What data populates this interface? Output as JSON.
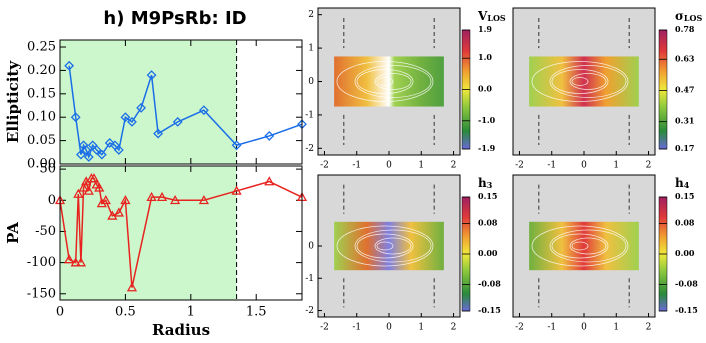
{
  "chart_data": [
    {
      "type": "line",
      "title": "h) M9PsRb: ID",
      "y_label": "Ellipticity",
      "marker": "diamond",
      "x": [
        0.07,
        0.12,
        0.16,
        0.18,
        0.2,
        0.22,
        0.25,
        0.28,
        0.32,
        0.38,
        0.42,
        0.45,
        0.5,
        0.55,
        0.62,
        0.7,
        0.75,
        0.9,
        1.1,
        1.35,
        1.6,
        1.85
      ],
      "series": [
        {
          "color": "#1a6ee8",
          "values": [
            0.21,
            0.1,
            0.02,
            0.04,
            0.03,
            0.015,
            0.04,
            0.03,
            0.02,
            0.045,
            0.04,
            0.03,
            0.1,
            0.09,
            0.12,
            0.19,
            0.065,
            0.09,
            0.115,
            0.04,
            0.06,
            0.085
          ]
        }
      ],
      "xlim": [
        0,
        1.85
      ],
      "ylim": [
        0,
        0.265
      ],
      "xticks": [
        0,
        0.5,
        1,
        1.5
      ],
      "yticks": [
        {
          "value": 0,
          "label": "0.00"
        },
        {
          "value": 0.05,
          "label": "0.05"
        },
        {
          "value": 0.1,
          "label": "0.10"
        },
        {
          "value": 0.15,
          "label": "0.15"
        },
        {
          "value": 0.2,
          "label": "0.20"
        },
        {
          "value": 0.25,
          "label": "0.25"
        }
      ],
      "shaded_range": [
        0,
        1.35
      ],
      "shade_color": "#ccf7cc"
    },
    {
      "type": "line",
      "y_label": "PA",
      "x_label": "Radius",
      "marker": "triangle",
      "x": [
        0,
        0.07,
        0.12,
        0.14,
        0.16,
        0.18,
        0.2,
        0.22,
        0.24,
        0.26,
        0.28,
        0.3,
        0.32,
        0.35,
        0.4,
        0.45,
        0.5,
        0.55,
        0.7,
        0.78,
        0.88,
        1.1,
        1.35,
        1.6,
        1.85
      ],
      "series": [
        {
          "color": "#e8231f",
          "values": [
            0,
            -95,
            -100,
            10,
            -100,
            20,
            30,
            15,
            35,
            35,
            25,
            20,
            -5,
            0,
            -25,
            -20,
            0,
            -140,
            5,
            5,
            0,
            0,
            15,
            30,
            5
          ]
        }
      ],
      "xlim": [
        0,
        1.85
      ],
      "ylim": [
        -160,
        55
      ],
      "xticks": [
        0,
        0.5,
        1,
        1.5
      ],
      "yticks": [
        50,
        0,
        -50,
        -100,
        -150
      ],
      "shaded_range": [
        0,
        1.35
      ],
      "shade_color": "#ccf7cc"
    },
    {
      "type": "map",
      "symbol": "V",
      "subscript": "LOS",
      "xlim": [
        -2.2,
        2.2
      ],
      "ylim": [
        -2.2,
        2.2
      ],
      "xticks": [
        -2,
        -1,
        0,
        1,
        2
      ],
      "yticks": [
        2,
        1,
        0,
        -1,
        -2
      ],
      "clim": [
        -1.9,
        1.9
      ],
      "cticks": [
        1.9,
        {
          "value": 1,
          "label": "1.0"
        },
        {
          "value": 0,
          "label": "0.0"
        },
        {
          "value": -1,
          "label": "-1.0"
        },
        -1.9
      ]
    },
    {
      "type": "map",
      "symbol": "σ",
      "subscript": "LOS",
      "xlim": [
        -2.2,
        2.2
      ],
      "ylim": [
        -2.2,
        2.2
      ],
      "xticks": [
        -2,
        -1,
        0,
        1,
        2
      ],
      "clim": [
        0.17,
        0.78
      ],
      "cticks": [
        0.78,
        0.63,
        0.47,
        0.31,
        0.17
      ]
    },
    {
      "type": "map",
      "symbol": "h",
      "subscript": "3",
      "xlim": [
        -2.2,
        2.2
      ],
      "ylim": [
        -2.2,
        2.2
      ],
      "xticks": [
        -2,
        -1,
        0,
        1,
        2
      ],
      "yticks": [
        0,
        -1,
        -2
      ],
      "clim": [
        -0.15,
        0.15
      ],
      "cticks": [
        0.15,
        0.08,
        {
          "value": 0,
          "label": "0.00"
        },
        -0.08,
        -0.15
      ]
    },
    {
      "type": "map",
      "symbol": "h",
      "subscript": "4",
      "xlim": [
        -2.2,
        2.2
      ],
      "ylim": [
        -2.2,
        2.2
      ],
      "xticks": [
        -2,
        -1,
        0,
        1,
        2
      ],
      "clim": [
        -0.15,
        0.15
      ],
      "cticks": [
        0.15,
        0.08,
        {
          "value": 0,
          "label": "0.00"
        },
        -0.08,
        -0.15
      ]
    }
  ]
}
